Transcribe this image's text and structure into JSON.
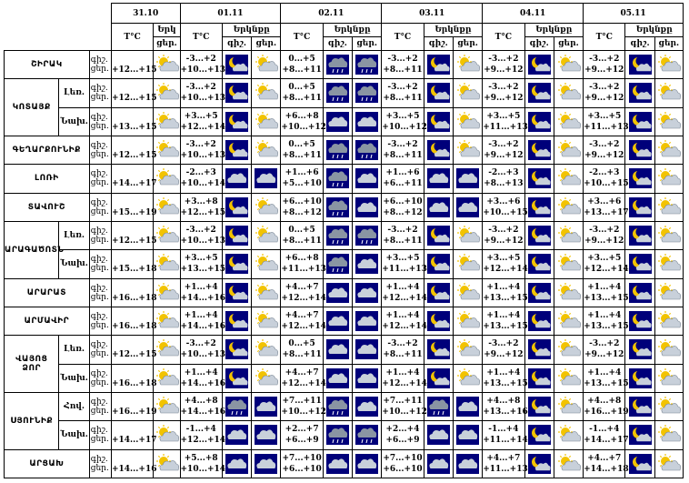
{
  "days": [
    "31.10",
    "01.11",
    "02.11",
    "03.11",
    "04.11",
    "05.11"
  ],
  "header": {
    "temp_label": "T°C",
    "cloud_label": "Երկնքը",
    "cloud_label_short": "Երկ",
    "day_short": "ցեր.",
    "night_short": "գիշ."
  },
  "colors": {
    "night_bg": "#00007a",
    "sun": "#f2c300",
    "cloud": "#c8d0da"
  },
  "rows": [
    {
      "region": "ՇԻՐԱԿ",
      "sub": "",
      "night": "գիշ.",
      "day": "ցեր.",
      "d0": [
        "",
        "+12...+15"
      ],
      "i0": [
        "sun_cloud"
      ],
      "d1": [
        "-3...+2",
        "+10...+13"
      ],
      "i1": [
        "moon_cloud",
        "sun_cloud"
      ],
      "d2": [
        "0...+5",
        "+8...+11"
      ],
      "i2": [
        "cloud_rain",
        "cloud_rain"
      ],
      "d3": [
        "-3...+2",
        "+8...+11"
      ],
      "i3": [
        "moon_cloud",
        "sun_cloud"
      ],
      "d4": [
        "-3...+2",
        "+9...+12"
      ],
      "i4": [
        "moon_cloud",
        "sun_cloud"
      ],
      "d5": [
        "-3...+2",
        "+9...+12"
      ],
      "i5": [
        "moon_cloud",
        "sun_cloud"
      ]
    },
    {
      "region": "ԿՈՏԱՅՔ",
      "sub": "Լեռ.",
      "night": "գիշ.",
      "day": "ցեր.",
      "d0": [
        "",
        "+12...+15"
      ],
      "i0": [
        "sun_cloud"
      ],
      "d1": [
        "-3...+2",
        "+10...+13"
      ],
      "i1": [
        "moon_cloud",
        "sun_cloud"
      ],
      "d2": [
        "0...+5",
        "+8...+11"
      ],
      "i2": [
        "cloud_rain",
        "cloud_rain"
      ],
      "d3": [
        "-3...+2",
        "+8...+11"
      ],
      "i3": [
        "moon_cloud",
        "sun_cloud"
      ],
      "d4": [
        "-3...+2",
        "+9...+12"
      ],
      "i4": [
        "moon_cloud",
        "sun_cloud"
      ],
      "d5": [
        "-3...+2",
        "+9...+12"
      ],
      "i5": [
        "moon_cloud",
        "sun_cloud"
      ]
    },
    {
      "region": "",
      "sub": "Նախ.",
      "night": "գիշ.",
      "day": "ցեր.",
      "d0": [
        "",
        "+13...+15"
      ],
      "i0": [
        "sun_cloud"
      ],
      "d1": [
        "+3...+5",
        "+12...+14"
      ],
      "i1": [
        "moon_cloud",
        "sun_cloud"
      ],
      "d2": [
        "+6...+8",
        "+10...+12"
      ],
      "i2": [
        "cloud",
        "cloud"
      ],
      "d3": [
        "+3...+5",
        "+10...+12"
      ],
      "i3": [
        "moon_cloud",
        "sun_cloud"
      ],
      "d4": [
        "+3...+5",
        "+11...+13"
      ],
      "i4": [
        "moon_cloud",
        "sun_cloud"
      ],
      "d5": [
        "+3...+5",
        "+11...+13"
      ],
      "i5": [
        "moon_cloud",
        "sun_cloud"
      ]
    },
    {
      "region": "ԳԵՂԱՐՔՈՒՆԻՔ",
      "sub": "",
      "night": "գիշ.",
      "day": "ցեր.",
      "d0": [
        "",
        "+12...+15"
      ],
      "i0": [
        "sun_cloud"
      ],
      "d1": [
        "-3...+2",
        "+10...+13"
      ],
      "i1": [
        "moon_cloud",
        "sun_cloud"
      ],
      "d2": [
        "0...+5",
        "+8...+11"
      ],
      "i2": [
        "cloud_rain",
        "cloud_rain"
      ],
      "d3": [
        "-3...+2",
        "+8...+11"
      ],
      "i3": [
        "moon_cloud",
        "sun_cloud"
      ],
      "d4": [
        "-3...+2",
        "+9...+12"
      ],
      "i4": [
        "moon_cloud",
        "sun_cloud"
      ],
      "d5": [
        "-3...+2",
        "+9...+12"
      ],
      "i5": [
        "moon_cloud",
        "sun_cloud"
      ]
    },
    {
      "region": "ԼՈՌԻ",
      "sub": "",
      "night": "գիշ.",
      "day": "ցեր.",
      "d0": [
        "",
        "+14...+17"
      ],
      "i0": [
        "sun_cloud"
      ],
      "d1": [
        "-2...+3",
        "+10...+14"
      ],
      "i1": [
        "cloud",
        "cloud"
      ],
      "d2": [
        "+1...+6",
        "+5...+10"
      ],
      "i2": [
        "cloud_rain",
        "cloud"
      ],
      "d3": [
        "+1...+6",
        "+6...+11"
      ],
      "i3": [
        "cloud",
        "cloud"
      ],
      "d4": [
        "-2...+3",
        "+8...+13"
      ],
      "i4": [
        "moon_cloud",
        "sun_cloud"
      ],
      "d5": [
        "-2...+3",
        "+10...+15"
      ],
      "i5": [
        "moon_cloud",
        "sun_cloud"
      ]
    },
    {
      "region": "ՏԱՎՈՒՇ",
      "sub": "",
      "night": "գիշ.",
      "day": "ցեր.",
      "d0": [
        "",
        "+15...+19"
      ],
      "i0": [
        "sun_cloud"
      ],
      "d1": [
        "+3...+8",
        "+12...+15"
      ],
      "i1": [
        "moon_cloud",
        "sun_cloud"
      ],
      "d2": [
        "+6...+10",
        "+8...+12"
      ],
      "i2": [
        "cloud_rain",
        "cloud"
      ],
      "d3": [
        "+6...+10",
        "+8...+12"
      ],
      "i3": [
        "cloud",
        "cloud"
      ],
      "d4": [
        "+3...+6",
        "+10...+15"
      ],
      "i4": [
        "moon_cloud",
        "sun_cloud"
      ],
      "d5": [
        "+3...+6",
        "+13...+17"
      ],
      "i5": [
        "moon_cloud",
        "sun_cloud"
      ]
    },
    {
      "region": "ԱՐԱԳԱԾՈՏՆ",
      "sub": "Լեռ.",
      "night": "գիշ.",
      "day": "ցեր.",
      "d0": [
        "",
        "+12...+15"
      ],
      "i0": [
        "sun_cloud"
      ],
      "d1": [
        "-3...+2",
        "+10...+13"
      ],
      "i1": [
        "moon_cloud",
        "sun_cloud"
      ],
      "d2": [
        "0...+5",
        "+8...+11"
      ],
      "i2": [
        "cloud_rain",
        "cloud_rain"
      ],
      "d3": [
        "-3...+2",
        "+8...+11"
      ],
      "i3": [
        "moon_cloud",
        "sun_cloud"
      ],
      "d4": [
        "-3...+2",
        "+9...+12"
      ],
      "i4": [
        "moon_cloud",
        "sun_cloud"
      ],
      "d5": [
        "-3...+2",
        "+9...+12"
      ],
      "i5": [
        "moon_cloud",
        "sun_cloud"
      ]
    },
    {
      "region": "",
      "sub": "Նախ.",
      "night": "գիշ.",
      "day": "ցեր.",
      "d0": [
        "",
        "+15...+18"
      ],
      "i0": [
        "sun_cloud"
      ],
      "d1": [
        "+3...+5",
        "+13...+15"
      ],
      "i1": [
        "moon_cloud",
        "sun_cloud"
      ],
      "d2": [
        "+6...+8",
        "+11...+13"
      ],
      "i2": [
        "cloud_rain",
        "cloud"
      ],
      "d3": [
        "+3...+5",
        "+11...+13"
      ],
      "i3": [
        "moon_cloud",
        "sun_cloud"
      ],
      "d4": [
        "+3...+5",
        "+12...+14"
      ],
      "i4": [
        "moon_cloud",
        "sun_cloud"
      ],
      "d5": [
        "+3...+5",
        "+12...+14"
      ],
      "i5": [
        "moon_cloud",
        "sun_cloud"
      ]
    },
    {
      "region": "ԱՐԱՐԱՏ",
      "sub": "",
      "night": "գիշ.",
      "day": "ցեր.",
      "d0": [
        "",
        "+16...+18"
      ],
      "i0": [
        "sun_cloud"
      ],
      "d1": [
        "+1...+4",
        "+14...+16"
      ],
      "i1": [
        "moon_cloud",
        "sun_cloud"
      ],
      "d2": [
        "+4...+7",
        "+12...+14"
      ],
      "i2": [
        "cloud",
        "cloud"
      ],
      "d3": [
        "+1...+4",
        "+12...+14"
      ],
      "i3": [
        "moon_cloud",
        "sun_cloud"
      ],
      "d4": [
        "+1...+4",
        "+13...+15"
      ],
      "i4": [
        "moon_cloud",
        "sun_cloud"
      ],
      "d5": [
        "+1...+4",
        "+13...+15"
      ],
      "i5": [
        "moon_cloud",
        "sun_cloud"
      ]
    },
    {
      "region": "ԱՐՄԱՎԻՐ",
      "sub": "",
      "night": "գիշ.",
      "day": "ցեր.",
      "d0": [
        "",
        "+16...+18"
      ],
      "i0": [
        "sun_cloud"
      ],
      "d1": [
        "+1...+4",
        "+14...+16"
      ],
      "i1": [
        "moon_cloud",
        "sun_cloud"
      ],
      "d2": [
        "+4...+7",
        "+12...+14"
      ],
      "i2": [
        "cloud",
        "cloud"
      ],
      "d3": [
        "+1...+4",
        "+12...+14"
      ],
      "i3": [
        "moon_cloud",
        "sun_cloud"
      ],
      "d4": [
        "+1...+4",
        "+13...+15"
      ],
      "i4": [
        "moon_cloud",
        "sun_cloud"
      ],
      "d5": [
        "+1...+4",
        "+13...+15"
      ],
      "i5": [
        "moon_cloud",
        "sun_cloud"
      ]
    },
    {
      "region": "ՎԱՅՈՑ ՁՈՐ",
      "sub": "Լեռ.",
      "night": "գիշ.",
      "day": "ցեր.",
      "d0": [
        "",
        "+12...+15"
      ],
      "i0": [
        "sun_cloud"
      ],
      "d1": [
        "-3...+2",
        "+10...+13"
      ],
      "i1": [
        "moon_cloud",
        "sun_cloud"
      ],
      "d2": [
        "0...+5",
        "+8...+11"
      ],
      "i2": [
        "cloud",
        "cloud"
      ],
      "d3": [
        "-3...+2",
        "+8...+11"
      ],
      "i3": [
        "moon_cloud",
        "sun_cloud"
      ],
      "d4": [
        "-3...+2",
        "+9...+12"
      ],
      "i4": [
        "moon_cloud",
        "sun_cloud"
      ],
      "d5": [
        "-3...+2",
        "+9...+12"
      ],
      "i5": [
        "moon_cloud",
        "sun_cloud"
      ]
    },
    {
      "region": "",
      "sub": "Նախ.",
      "night": "գիշ.",
      "day": "ցեր.",
      "d0": [
        "",
        "+16...+18"
      ],
      "i0": [
        "sun_cloud"
      ],
      "d1": [
        "+1...+4",
        "+14...+16"
      ],
      "i1": [
        "moon_cloud",
        "sun_cloud"
      ],
      "d2": [
        "+4...+7",
        "+12...+14"
      ],
      "i2": [
        "cloud",
        "cloud"
      ],
      "d3": [
        "+1...+4",
        "+12...+14"
      ],
      "i3": [
        "moon_cloud",
        "sun_cloud"
      ],
      "d4": [
        "+1...+4",
        "+13...+15"
      ],
      "i4": [
        "moon_cloud",
        "sun_cloud"
      ],
      "d5": [
        "+1...+4",
        "+13...+15"
      ],
      "i5": [
        "moon_cloud",
        "sun_cloud"
      ]
    },
    {
      "region": "ՍՅՈՒՆԻՔ",
      "sub": "Հով.",
      "night": "գիշ.",
      "day": "ցեր.",
      "d0": [
        "",
        "+16...+19"
      ],
      "i0": [
        "sun_cloud"
      ],
      "d1": [
        "+4...+8",
        "+14...+16"
      ],
      "i1": [
        "cloud_rain",
        "cloud"
      ],
      "d2": [
        "+7...+11",
        "+10...+12"
      ],
      "i2": [
        "cloud_rain",
        "cloud"
      ],
      "d3": [
        "+7...+11",
        "+10...+12"
      ],
      "i3": [
        "cloud_rain",
        "cloud"
      ],
      "d4": [
        "+4...+8",
        "+13...+16"
      ],
      "i4": [
        "moon_cloud",
        "sun_cloud"
      ],
      "d5": [
        "+4...+8",
        "+16...+19"
      ],
      "i5": [
        "moon_cloud",
        "sun_cloud"
      ]
    },
    {
      "region": "",
      "sub": "Նախ.",
      "night": "գիշ.",
      "day": "ցեր.",
      "d0": [
        "",
        "+14...+17"
      ],
      "i0": [
        "sun_cloud"
      ],
      "d1": [
        "-1...+4",
        "+12...+14"
      ],
      "i1": [
        "cloud",
        "cloud"
      ],
      "d2": [
        "+2...+7",
        "+6...+9"
      ],
      "i2": [
        "cloud_rain",
        "cloud_rain"
      ],
      "d3": [
        "+2...+4",
        "+6...+9"
      ],
      "i3": [
        "cloud",
        "cloud"
      ],
      "d4": [
        "-1...+4",
        "+11...+14"
      ],
      "i4": [
        "moon_cloud",
        "sun_cloud"
      ],
      "d5": [
        "-1...+4",
        "+14...+17"
      ],
      "i5": [
        "moon_cloud",
        "sun_cloud"
      ]
    },
    {
      "region": "ԱՐՑԱԽ",
      "sub": "",
      "night": "գիշ.",
      "day": "ցեր.",
      "d0": [
        "",
        "+14...+16"
      ],
      "i0": [
        "sun_cloud"
      ],
      "d1": [
        "+5...+8",
        "+10...+14"
      ],
      "i1": [
        "cloud",
        "cloud"
      ],
      "d2": [
        "+7...+10",
        "+6...+10"
      ],
      "i2": [
        "cloud",
        "cloud"
      ],
      "d3": [
        "+7...+10",
        "+6...+10"
      ],
      "i3": [
        "cloud",
        "cloud"
      ],
      "d4": [
        "+4...+7",
        "+11...+13"
      ],
      "i4": [
        "moon_cloud",
        "sun_cloud"
      ],
      "d5": [
        "+4...+7",
        "+14...+18"
      ],
      "i5": [
        "moon_cloud",
        "sun_cloud"
      ]
    }
  ]
}
